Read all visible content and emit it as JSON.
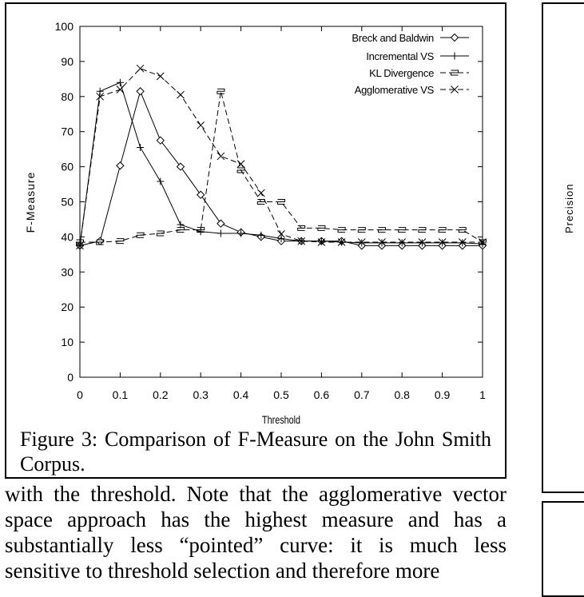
{
  "figure": {
    "caption": "Figure 3: Comparison of F-Measure on the John Smith Corpus."
  },
  "chart_data": {
    "type": "line",
    "title": "",
    "xlabel": "Threshold",
    "ylabel": "F-Measure",
    "xlim": [
      0,
      1
    ],
    "ylim": [
      0,
      100
    ],
    "xticks": [
      "0",
      "0.1",
      "0.2",
      "0.3",
      "0.4",
      "0.5",
      "0.6",
      "0.7",
      "0.8",
      "0.9",
      "1"
    ],
    "yticks": [
      "0",
      "10",
      "20",
      "30",
      "40",
      "50",
      "60",
      "70",
      "80",
      "90",
      "100"
    ],
    "legend_position": "top-right",
    "grid": false,
    "series": [
      {
        "name": "Breck and Baldwin",
        "marker": "diamond",
        "dash": "solid",
        "x": [
          0,
          0.05,
          0.1,
          0.15,
          0.2,
          0.25,
          0.3,
          0.35,
          0.4,
          0.45,
          0.5,
          0.55,
          0.6,
          0.65,
          0.7,
          0.75,
          0.8,
          0.85,
          0.9,
          0.95,
          1
        ],
        "y": [
          37.5,
          38.8,
          60.3,
          81.5,
          67.5,
          60,
          52,
          43.8,
          41.3,
          40,
          38.8,
          38.8,
          38.8,
          38.8,
          37.5,
          37.5,
          37.5,
          37.5,
          37.5,
          37.5,
          37.5
        ]
      },
      {
        "name": "Incremental VS",
        "marker": "plus",
        "dash": "solid",
        "x": [
          0,
          0.05,
          0.1,
          0.15,
          0.2,
          0.25,
          0.3,
          0.35,
          0.4,
          0.45,
          0.5,
          0.55,
          0.6,
          0.65,
          0.7,
          0.75,
          0.8,
          0.85,
          0.9,
          0.95,
          1
        ],
        "y": [
          37.5,
          81.5,
          84,
          65.5,
          55.8,
          43.5,
          41.5,
          41,
          41,
          40.5,
          39.5,
          38.8,
          38.8,
          38.5,
          38.3,
          38.3,
          38.3,
          38.3,
          38.3,
          38.3,
          38
        ]
      },
      {
        "name": "KL Divergence",
        "marker": "square",
        "dash": "dashed",
        "x": [
          0,
          0.05,
          0.1,
          0.15,
          0.2,
          0.25,
          0.3,
          0.35,
          0.4,
          0.45,
          0.5,
          0.55,
          0.6,
          0.65,
          0.7,
          0.75,
          0.8,
          0.85,
          0.9,
          0.95,
          1
        ],
        "y": [
          38.5,
          38.5,
          38.8,
          40.5,
          41,
          42,
          42,
          81.5,
          59,
          50,
          50,
          42.5,
          42.5,
          42,
          42,
          42,
          42,
          42,
          42,
          42,
          38.5
        ]
      },
      {
        "name": "Agglomerative VS",
        "marker": "x",
        "dash": "dashed",
        "x": [
          0,
          0.05,
          0.1,
          0.15,
          0.2,
          0.25,
          0.3,
          0.35,
          0.4,
          0.45,
          0.5,
          0.55,
          0.6,
          0.65,
          0.7,
          0.75,
          0.8,
          0.85,
          0.9,
          0.95,
          1
        ],
        "y": [
          37.5,
          80,
          82,
          88,
          85.8,
          80.5,
          71.8,
          63,
          60.8,
          52.5,
          40.8,
          38.8,
          38.5,
          38.5,
          38.5,
          38.5,
          38.5,
          38.5,
          38.5,
          38.5,
          38.5
        ]
      }
    ]
  },
  "right_figure": {
    "ylabel": "Precision"
  },
  "body": {
    "lines": [
      "with the threshold.  Note that the agglomerative vector",
      "space approach has the highest measure and has a",
      "substantially less “pointed” curve: it is much less",
      "sensitive to threshold selection and therefore more"
    ]
  }
}
